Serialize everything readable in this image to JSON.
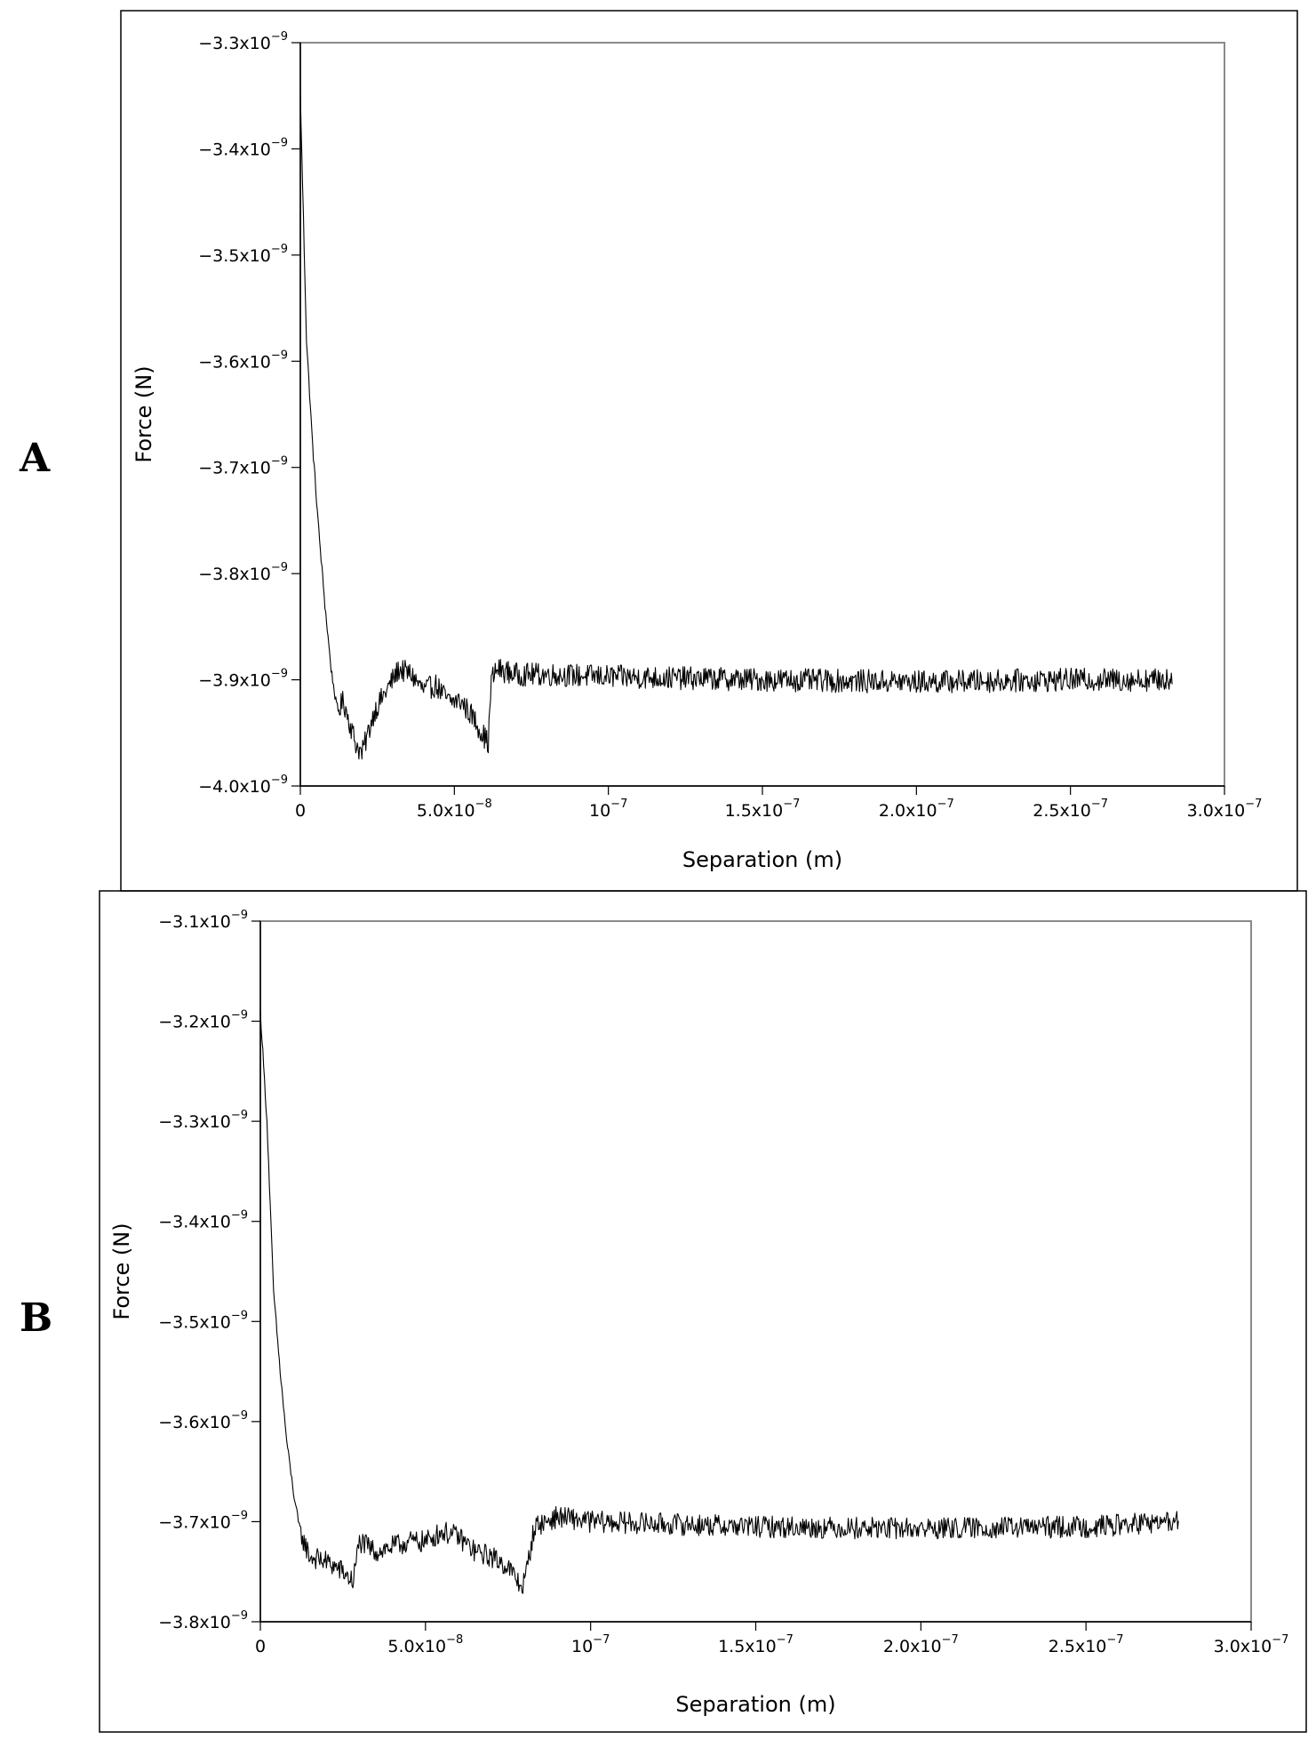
{
  "chart_data": [
    {
      "panel": "A",
      "type": "line",
      "xlabel": "Separation (m)",
      "ylabel": "Force (N)",
      "xlim": [
        0,
        3e-07
      ],
      "ylim": [
        -4e-09,
        -3.3e-09
      ],
      "grid": false,
      "x_ticks": [
        {
          "value": 0,
          "m": "0",
          "e": ""
        },
        {
          "value": 5e-08,
          "m": "5.0x10",
          "e": "−8"
        },
        {
          "value": 1e-07,
          "m": "10",
          "e": "−7"
        },
        {
          "value": 1.5e-07,
          "m": "1.5x10",
          "e": "−7"
        },
        {
          "value": 2e-07,
          "m": "2.0x10",
          "e": "−7"
        },
        {
          "value": 2.5e-07,
          "m": "2.5x10",
          "e": "−7"
        },
        {
          "value": 3e-07,
          "m": "3.0x10",
          "e": "−7"
        }
      ],
      "y_ticks": [
        {
          "value": -3.3e-09,
          "m": "−3.3x10",
          "e": "−9"
        },
        {
          "value": -3.4e-09,
          "m": "−3.4x10",
          "e": "−9"
        },
        {
          "value": -3.5e-09,
          "m": "−3.5x10",
          "e": "−9"
        },
        {
          "value": -3.6e-09,
          "m": "−3.6x10",
          "e": "−9"
        },
        {
          "value": -3.7e-09,
          "m": "−3.7x10",
          "e": "−9"
        },
        {
          "value": -3.8e-09,
          "m": "−3.8x10",
          "e": "−9"
        },
        {
          "value": -3.9e-09,
          "m": "−3.9x10",
          "e": "−9"
        },
        {
          "value": -4e-09,
          "m": "−4.0x10",
          "e": "−9"
        }
      ],
      "series": [
        {
          "x": [
            0,
            2e-09,
            4e-09,
            6e-09,
            8e-09,
            1e-08,
            1.2e-08,
            1.4e-08,
            1.6e-08,
            1.8e-08,
            2e-08,
            2.4e-08,
            2.8e-08,
            3.2e-08,
            3.6e-08,
            4e-08,
            4.4e-08,
            4.8e-08,
            5.2e-08,
            5.6e-08,
            6e-08,
            6.1e-08,
            6.2e-08,
            6.4e-08,
            7e-08,
            8e-08,
            1e-07,
            1.5e-07,
            2e-07,
            2.5e-07,
            2.83e-07
          ],
          "y": [
            -3.35e-09,
            -3.58e-09,
            -3.68e-09,
            -3.76e-09,
            -3.83e-09,
            -3.89e-09,
            -3.93e-09,
            -3.92e-09,
            -3.94e-09,
            -3.96e-09,
            -3.97e-09,
            -3.93e-09,
            -3.91e-09,
            -3.89e-09,
            -3.895e-09,
            -3.91e-09,
            -3.905e-09,
            -3.92e-09,
            -3.92e-09,
            -3.935e-09,
            -3.955e-09,
            -3.96e-09,
            -3.9e-09,
            -3.89e-09,
            -3.895e-09,
            -3.895e-09,
            -3.897e-09,
            -3.9e-09,
            -3.902e-09,
            -3.9e-09,
            -3.9e-09
          ]
        }
      ]
    },
    {
      "panel": "B",
      "type": "line",
      "xlabel": "Separation (m)",
      "ylabel": "Force (N)",
      "xlim": [
        0,
        3e-07
      ],
      "ylim": [
        -3.8e-09,
        -3.1e-09
      ],
      "grid": false,
      "x_ticks": [
        {
          "value": 0,
          "m": "0",
          "e": ""
        },
        {
          "value": 5e-08,
          "m": "5.0x10",
          "e": "−8"
        },
        {
          "value": 1e-07,
          "m": "10",
          "e": "−7"
        },
        {
          "value": 1.5e-07,
          "m": "1.5x10",
          "e": "−7"
        },
        {
          "value": 2e-07,
          "m": "2.0x10",
          "e": "−7"
        },
        {
          "value": 2.5e-07,
          "m": "2.5x10",
          "e": "−7"
        },
        {
          "value": 3e-07,
          "m": "3.0x10",
          "e": "−7"
        }
      ],
      "y_ticks": [
        {
          "value": -3.1e-09,
          "m": "−3.1x10",
          "e": "−9"
        },
        {
          "value": -3.2e-09,
          "m": "−3.2x10",
          "e": "−9"
        },
        {
          "value": -3.3e-09,
          "m": "−3.3x10",
          "e": "−9"
        },
        {
          "value": -3.4e-09,
          "m": "−3.4x10",
          "e": "−9"
        },
        {
          "value": -3.5e-09,
          "m": "−3.5x10",
          "e": "−9"
        },
        {
          "value": -3.6e-09,
          "m": "−3.6x10",
          "e": "−9"
        },
        {
          "value": -3.7e-09,
          "m": "−3.7x10",
          "e": "−9"
        },
        {
          "value": -3.8e-09,
          "m": "−3.8x10",
          "e": "−9"
        }
      ],
      "series": [
        {
          "x": [
            0,
            2e-09,
            4e-09,
            6e-09,
            8e-09,
            1e-08,
            1.2e-08,
            1.5e-08,
            2e-08,
            2.5e-08,
            2.8e-08,
            3e-08,
            3.5e-08,
            4e-08,
            4.5e-08,
            5e-08,
            5.5e-08,
            6e-08,
            6.5e-08,
            7e-08,
            7.5e-08,
            7.9e-08,
            8e-08,
            8.3e-08,
            9e-08,
            1e-07,
            1.5e-07,
            2e-07,
            2.5e-07,
            2.78e-07
          ],
          "y": [
            -3.19e-09,
            -3.3e-09,
            -3.47e-09,
            -3.55e-09,
            -3.62e-09,
            -3.67e-09,
            -3.71e-09,
            -3.735e-09,
            -3.74e-09,
            -3.75e-09,
            -3.76e-09,
            -3.72e-09,
            -3.73e-09,
            -3.725e-09,
            -3.72e-09,
            -3.72e-09,
            -3.71e-09,
            -3.715e-09,
            -3.73e-09,
            -3.735e-09,
            -3.745e-09,
            -3.765e-09,
            -3.76e-09,
            -3.705e-09,
            -3.695e-09,
            -3.7e-09,
            -3.705e-09,
            -3.707e-09,
            -3.705e-09,
            -3.7e-09
          ]
        }
      ]
    }
  ]
}
